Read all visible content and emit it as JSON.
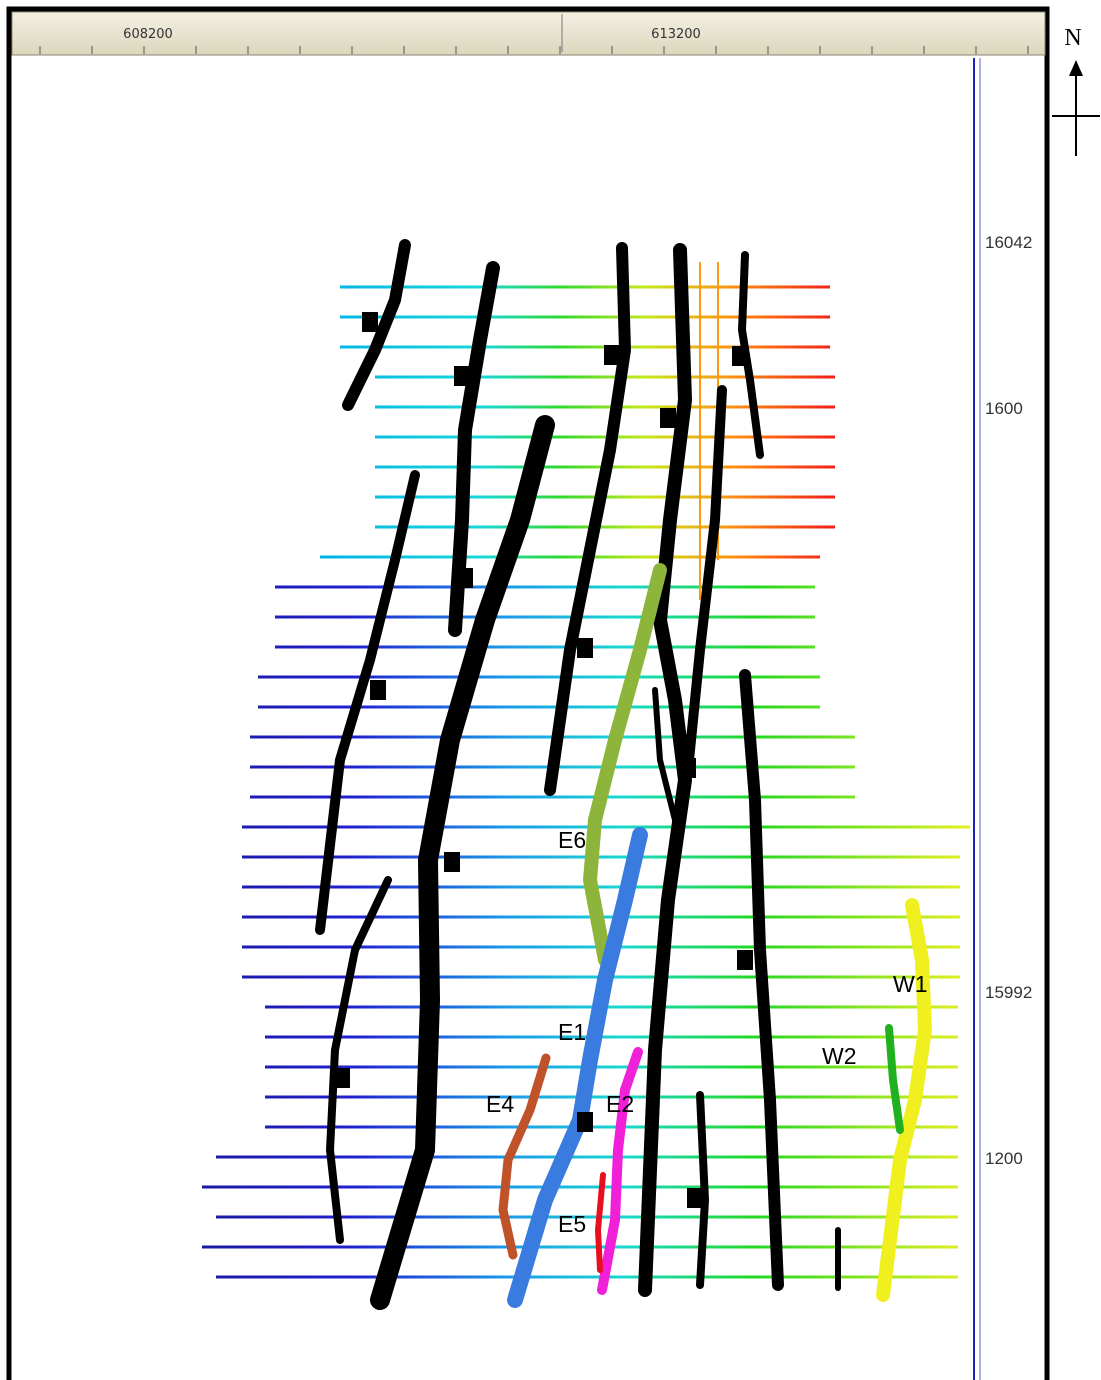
{
  "ruler": {
    "labels": [
      "608200",
      "613200"
    ]
  },
  "scale": {
    "labels": [
      "16042",
      "1600",
      "15992",
      "1200"
    ]
  },
  "north": "N",
  "faults": {
    "labels": [
      "E6",
      "E1",
      "E4",
      "E2",
      "E5",
      "W1",
      "W2"
    ]
  }
}
